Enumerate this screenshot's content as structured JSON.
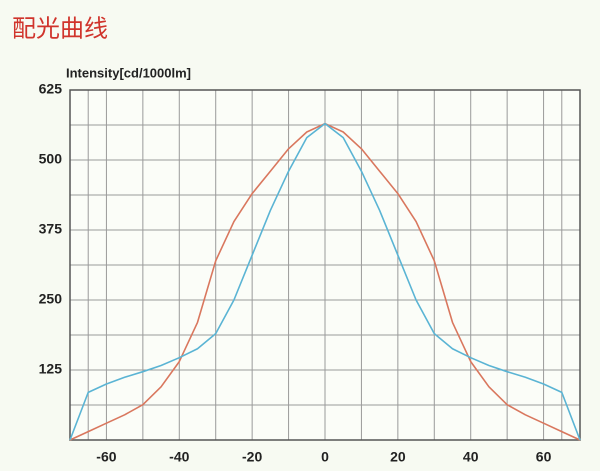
{
  "chart_data": {
    "type": "line",
    "title": "配光曲线",
    "y_label": "Intensity[cd/1000lm]",
    "x": [
      -70,
      -65,
      -60,
      -55,
      -50,
      -45,
      -40,
      -35,
      -30,
      -25,
      -20,
      -15,
      -10,
      -5,
      0,
      5,
      10,
      15,
      20,
      25,
      30,
      35,
      40,
      45,
      50,
      55,
      60,
      65,
      70
    ],
    "series": [
      {
        "color": "#d9775e",
        "values": [
          0,
          15,
          30,
          45,
          63,
          95,
          140,
          210,
          320,
          390,
          440,
          480,
          520,
          550,
          565,
          550,
          520,
          480,
          440,
          390,
          320,
          210,
          140,
          95,
          63,
          45,
          30,
          15,
          0
        ]
      },
      {
        "color": "#5ab4d4",
        "values": [
          0,
          85,
          100,
          112,
          122,
          133,
          147,
          163,
          190,
          250,
          330,
          410,
          480,
          540,
          565,
          540,
          480,
          410,
          330,
          250,
          190,
          163,
          147,
          133,
          122,
          112,
          100,
          85,
          0
        ]
      }
    ],
    "xlim": [
      -70,
      70
    ],
    "xticks": [
      -60,
      -40,
      -20,
      0,
      20,
      40,
      60
    ],
    "ylim": [
      0,
      625
    ],
    "yticks": [
      125,
      250,
      375,
      500,
      625
    ],
    "grid": true
  }
}
